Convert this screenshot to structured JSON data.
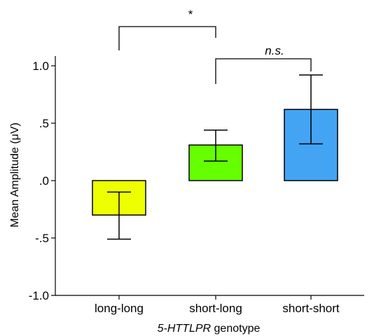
{
  "chart_data": {
    "type": "bar",
    "categories": [
      "long-long",
      "short-long",
      "short-short"
    ],
    "values": [
      -0.3,
      0.31,
      0.62
    ],
    "errors": [
      [
        -0.51,
        -0.1
      ],
      [
        0.17,
        0.44
      ],
      [
        0.32,
        0.92
      ]
    ],
    "colors": [
      "#eeff00",
      "#66ff00",
      "#44a4f4"
    ],
    "ylim": [
      -1.0,
      1.1
    ],
    "yticks": [
      -1.0,
      -0.5,
      0.0,
      0.5,
      1.0
    ],
    "ytick_labels": [
      "-1.0",
      "-.5",
      ".0",
      ".5",
      "1.0"
    ],
    "ylabel": "Mean Amplitude (μV)",
    "xlabel_italic": "5-HTTLPR",
    "xlabel_rest": " genotype",
    "significance": [
      {
        "from": 0,
        "to": 1,
        "label": "*",
        "italic": false
      },
      {
        "from": 1,
        "to": 2,
        "label": "n.s.",
        "italic": true
      }
    ]
  }
}
